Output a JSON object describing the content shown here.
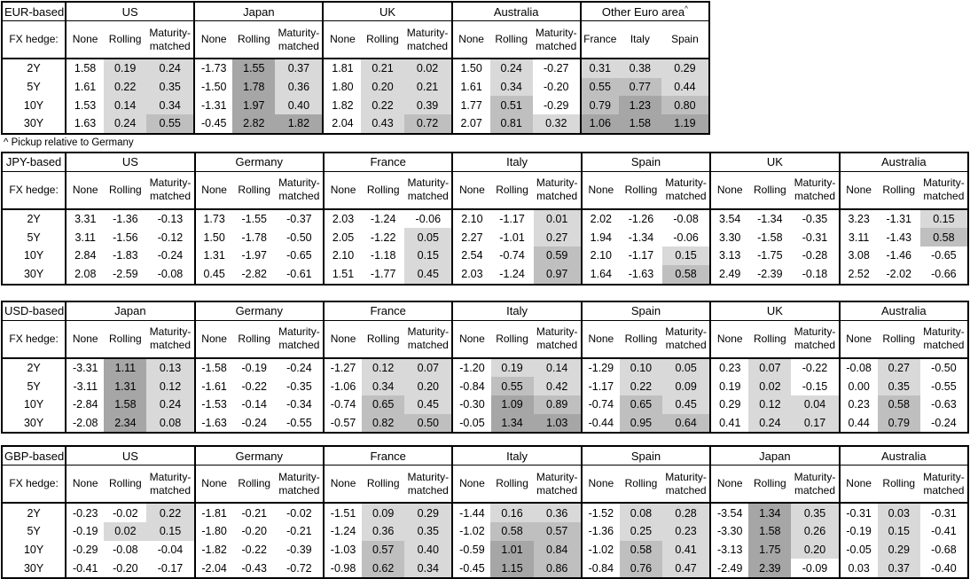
{
  "footnote": "^ Pickup relative to Germany",
  "labels": {
    "fx_hedge": "FX hedge:"
  },
  "row_labels": [
    "2Y",
    "5Y",
    "10Y",
    "30Y"
  ],
  "default_cols": [
    "None",
    "Rolling",
    "Maturity-matched"
  ],
  "heat_colors": {
    "negative": "#ffffff",
    "low": "#d9d9d9",
    "mid": "#bfbfbf",
    "high": "#a6a6a6"
  },
  "heat_thresholds": {
    "low_min": 0,
    "mid_min": 0.5,
    "high_min": 1.0
  },
  "tables": [
    {
      "base": "EUR-based",
      "groups": [
        {
          "name": "US",
          "rows": [
            [
              1.58,
              0.19,
              0.24
            ],
            [
              1.61,
              0.22,
              0.35
            ],
            [
              1.53,
              0.14,
              0.34
            ],
            [
              1.63,
              0.24,
              0.55
            ]
          ]
        },
        {
          "name": "Japan",
          "rows": [
            [
              -1.73,
              1.55,
              0.37
            ],
            [
              -1.5,
              1.78,
              0.36
            ],
            [
              -1.31,
              1.97,
              0.4
            ],
            [
              -0.45,
              2.82,
              1.82
            ]
          ]
        },
        {
          "name": "UK",
          "rows": [
            [
              1.81,
              0.21,
              0.02
            ],
            [
              1.8,
              0.2,
              0.21
            ],
            [
              1.82,
              0.22,
              0.39
            ],
            [
              2.04,
              0.43,
              0.72
            ]
          ]
        },
        {
          "name": "Australia",
          "rows": [
            [
              1.5,
              0.24,
              -0.27
            ],
            [
              1.61,
              0.34,
              -0.2
            ],
            [
              1.77,
              0.51,
              -0.29
            ],
            [
              2.07,
              0.81,
              0.32
            ]
          ]
        },
        {
          "name": "Other Euro area",
          "sup": "^",
          "cols": [
            "France",
            "Italy",
            "Spain"
          ],
          "shaded_cols": [
            0,
            1,
            2
          ],
          "rows": [
            [
              0.31,
              0.38,
              0.29
            ],
            [
              0.55,
              0.77,
              0.44
            ],
            [
              0.79,
              1.23,
              0.8
            ],
            [
              1.06,
              1.58,
              1.19
            ]
          ]
        }
      ]
    },
    {
      "base": "JPY-based",
      "groups": [
        {
          "name": "US",
          "rows": [
            [
              3.31,
              -1.36,
              -0.13
            ],
            [
              3.11,
              -1.56,
              -0.12
            ],
            [
              2.84,
              -1.83,
              -0.24
            ],
            [
              2.08,
              -2.59,
              -0.08
            ]
          ]
        },
        {
          "name": "Germany",
          "rows": [
            [
              1.73,
              -1.55,
              -0.37
            ],
            [
              1.5,
              -1.78,
              -0.5
            ],
            [
              1.31,
              -1.97,
              -0.65
            ],
            [
              0.45,
              -2.82,
              -0.61
            ]
          ]
        },
        {
          "name": "France",
          "rows": [
            [
              2.03,
              -1.24,
              -0.06
            ],
            [
              2.05,
              -1.22,
              0.05
            ],
            [
              2.1,
              -1.18,
              0.15
            ],
            [
              1.51,
              -1.77,
              0.45
            ]
          ]
        },
        {
          "name": "Italy",
          "rows": [
            [
              2.1,
              -1.17,
              0.01
            ],
            [
              2.27,
              -1.01,
              0.27
            ],
            [
              2.54,
              -0.74,
              0.59
            ],
            [
              2.03,
              -1.24,
              0.97
            ]
          ]
        },
        {
          "name": "Spain",
          "rows": [
            [
              2.02,
              -1.26,
              -0.08
            ],
            [
              1.94,
              -1.34,
              -0.06
            ],
            [
              2.1,
              -1.17,
              0.15
            ],
            [
              1.64,
              -1.63,
              0.58
            ]
          ]
        },
        {
          "name": "UK",
          "rows": [
            [
              3.54,
              -1.34,
              -0.35
            ],
            [
              3.3,
              -1.58,
              -0.31
            ],
            [
              3.13,
              -1.75,
              -0.28
            ],
            [
              2.49,
              -2.39,
              -0.18
            ]
          ]
        },
        {
          "name": "Australia",
          "rows": [
            [
              3.23,
              -1.31,
              0.15
            ],
            [
              3.11,
              -1.43,
              0.58
            ],
            [
              3.08,
              -1.46,
              -0.65
            ],
            [
              2.52,
              -2.02,
              -0.66
            ]
          ]
        }
      ]
    },
    {
      "base": "USD-based",
      "groups": [
        {
          "name": "Japan",
          "rows": [
            [
              -3.31,
              1.11,
              0.13
            ],
            [
              -3.11,
              1.31,
              0.12
            ],
            [
              -2.84,
              1.58,
              0.24
            ],
            [
              -2.08,
              2.34,
              0.08
            ]
          ]
        },
        {
          "name": "Germany",
          "rows": [
            [
              -1.58,
              -0.19,
              -0.24
            ],
            [
              -1.61,
              -0.22,
              -0.35
            ],
            [
              -1.53,
              -0.14,
              -0.34
            ],
            [
              -1.63,
              -0.24,
              -0.55
            ]
          ]
        },
        {
          "name": "France",
          "rows": [
            [
              -1.27,
              0.12,
              0.07
            ],
            [
              -1.06,
              0.34,
              0.2
            ],
            [
              -0.74,
              0.65,
              0.45
            ],
            [
              -0.57,
              0.82,
              0.5
            ]
          ]
        },
        {
          "name": "Italy",
          "rows": [
            [
              -1.2,
              0.19,
              0.14
            ],
            [
              -0.84,
              0.55,
              0.42
            ],
            [
              -0.3,
              1.09,
              0.89
            ],
            [
              -0.05,
              1.34,
              1.03
            ]
          ]
        },
        {
          "name": "Spain",
          "rows": [
            [
              -1.29,
              0.1,
              0.05
            ],
            [
              -1.17,
              0.22,
              0.09
            ],
            [
              -0.74,
              0.65,
              0.45
            ],
            [
              -0.44,
              0.95,
              0.64
            ]
          ]
        },
        {
          "name": "UK",
          "rows": [
            [
              0.23,
              0.07,
              -0.22
            ],
            [
              0.19,
              0.02,
              -0.15
            ],
            [
              0.29,
              0.12,
              0.04
            ],
            [
              0.41,
              0.24,
              0.17
            ]
          ]
        },
        {
          "name": "Australia",
          "rows": [
            [
              -0.08,
              0.27,
              -0.5
            ],
            [
              0.0,
              0.35,
              -0.55
            ],
            [
              0.23,
              0.58,
              -0.63
            ],
            [
              0.44,
              0.79,
              -0.24
            ]
          ]
        }
      ]
    },
    {
      "base": "GBP-based",
      "groups": [
        {
          "name": "US",
          "rows": [
            [
              -0.23,
              -0.02,
              0.22
            ],
            [
              -0.19,
              0.02,
              0.15
            ],
            [
              -0.29,
              -0.08,
              -0.04
            ],
            [
              -0.41,
              -0.2,
              -0.17
            ]
          ]
        },
        {
          "name": "Germany",
          "rows": [
            [
              -1.81,
              -0.21,
              -0.02
            ],
            [
              -1.8,
              -0.2,
              -0.21
            ],
            [
              -1.82,
              -0.22,
              -0.39
            ],
            [
              -2.04,
              -0.43,
              -0.72
            ]
          ]
        },
        {
          "name": "France",
          "rows": [
            [
              -1.51,
              0.09,
              0.29
            ],
            [
              -1.24,
              0.36,
              0.35
            ],
            [
              -1.03,
              0.57,
              0.4
            ],
            [
              -0.98,
              0.62,
              0.34
            ]
          ]
        },
        {
          "name": "Italy",
          "rows": [
            [
              -1.44,
              0.16,
              0.36
            ],
            [
              -1.02,
              0.58,
              0.57
            ],
            [
              -0.59,
              1.01,
              0.84
            ],
            [
              -0.45,
              1.15,
              0.86
            ]
          ]
        },
        {
          "name": "Spain",
          "rows": [
            [
              -1.52,
              0.08,
              0.28
            ],
            [
              -1.36,
              0.25,
              0.23
            ],
            [
              -1.02,
              0.58,
              0.41
            ],
            [
              -0.84,
              0.76,
              0.47
            ]
          ]
        },
        {
          "name": "Japan",
          "rows": [
            [
              -3.54,
              1.34,
              0.35
            ],
            [
              -3.3,
              1.58,
              0.26
            ],
            [
              -3.13,
              1.75,
              0.2
            ],
            [
              -2.49,
              2.39,
              -0.09
            ]
          ]
        },
        {
          "name": "Australia",
          "rows": [
            [
              -0.31,
              0.03,
              -0.31
            ],
            [
              -0.19,
              0.15,
              -0.41
            ],
            [
              -0.05,
              0.29,
              -0.68
            ],
            [
              0.03,
              0.37,
              -0.4
            ]
          ]
        }
      ]
    }
  ]
}
